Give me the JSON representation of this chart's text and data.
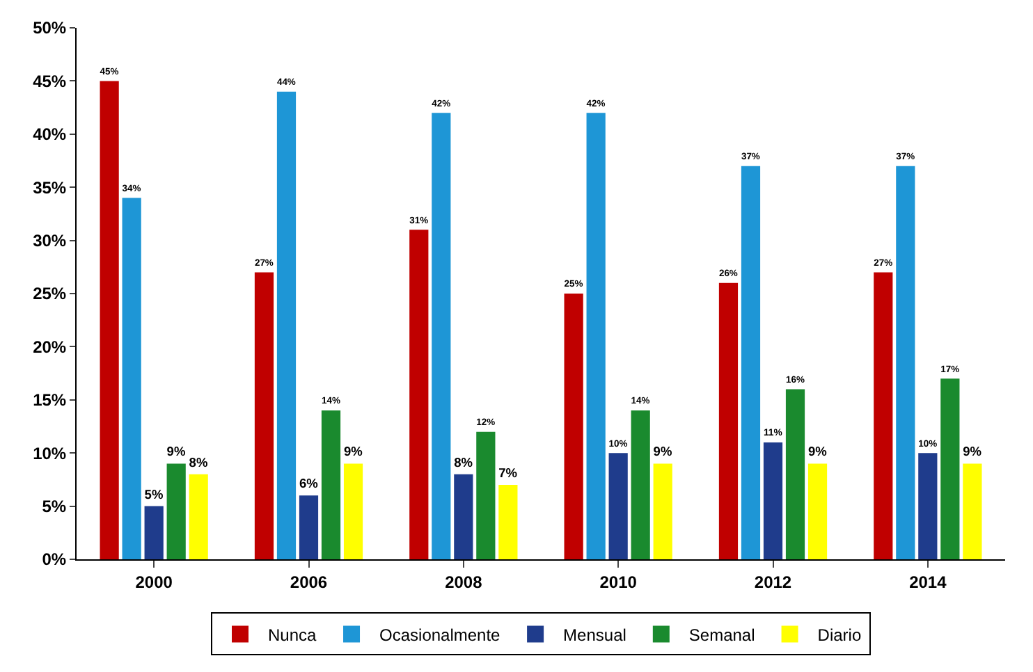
{
  "chart_data": {
    "type": "bar",
    "categories": [
      "2000",
      "2006",
      "2008",
      "2010",
      "2012",
      "2014"
    ],
    "series": [
      {
        "name": "Nunca",
        "color": "#c00000",
        "values": [
          45,
          27,
          31,
          25,
          26,
          27
        ],
        "value_labels": [
          "45%",
          "27%",
          "31%",
          "25%",
          "26%",
          "27%"
        ]
      },
      {
        "name": "Ocasionalmente",
        "color": "#1e96d6",
        "values": [
          34,
          44,
          42,
          42,
          37,
          37
        ],
        "value_labels": [
          "34%",
          "44%",
          "42%",
          "42%",
          "37%",
          "37%"
        ]
      },
      {
        "name": "Mensual",
        "color": "#1f3c8c",
        "values": [
          5,
          6,
          8,
          10,
          11,
          10
        ],
        "value_labels": [
          "5%",
          "6%",
          "8%",
          "10%",
          "11%",
          "10%"
        ]
      },
      {
        "name": "Semanal",
        "color": "#1a8a2e",
        "values": [
          9,
          14,
          12,
          14,
          16,
          17
        ],
        "value_labels": [
          "9%",
          "14%",
          "12%",
          "14%",
          "16%",
          "17%"
        ]
      },
      {
        "name": "Diario",
        "color": "#ffff00",
        "values": [
          8,
          9,
          7,
          9,
          9,
          9
        ],
        "value_labels": [
          "8%",
          "9%",
          "7%",
          "9%",
          "9%",
          "9%"
        ]
      }
    ],
    "ylim": [
      0,
      50
    ],
    "yticks": [
      {
        "value": 0,
        "label": "0%"
      },
      {
        "value": 5,
        "label": "5%"
      },
      {
        "value": 10,
        "label": "10%"
      },
      {
        "value": 15,
        "label": "15%"
      },
      {
        "value": 20,
        "label": "20%"
      },
      {
        "value": 25,
        "label": "25%"
      },
      {
        "value": 30,
        "label": "30%"
      },
      {
        "value": 35,
        "label": "35%"
      },
      {
        "value": 40,
        "label": "40%"
      },
      {
        "value": 45,
        "label": "45%"
      },
      {
        "value": 50,
        "label": "50%"
      }
    ],
    "grid": false,
    "legend": "bottom"
  }
}
